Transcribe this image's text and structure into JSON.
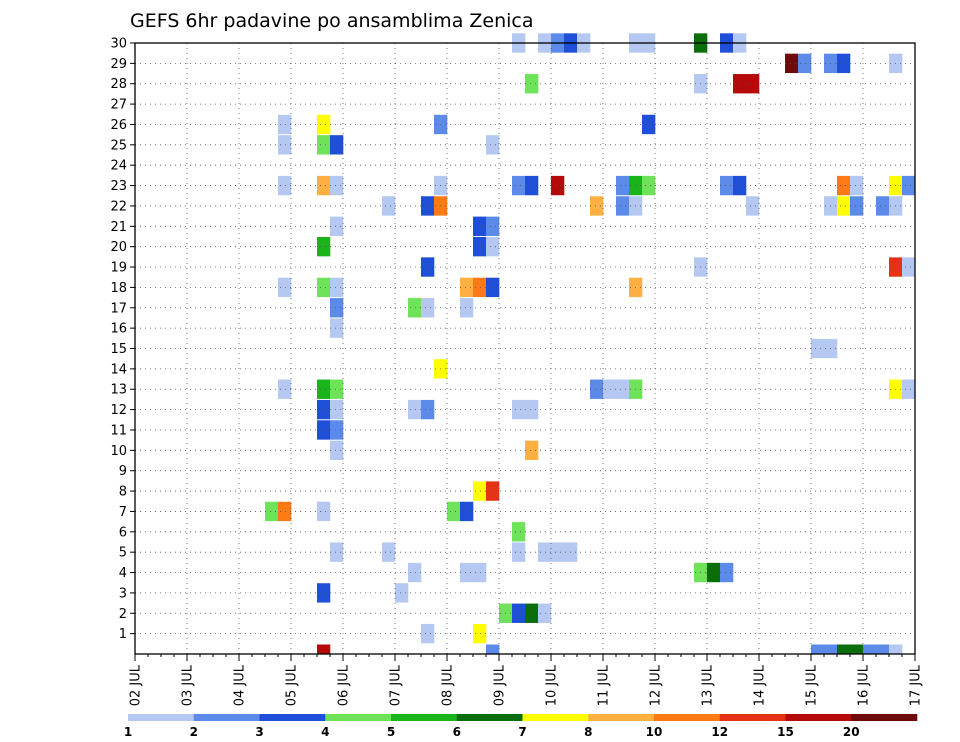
{
  "chart_data": {
    "type": "heatmap",
    "title": "GEFS 6hr padavine po ansamblima Zenica",
    "xlabel": "",
    "ylabel": "",
    "x_ticks": [
      "02 JUL",
      "03 JUL",
      "04 JUL",
      "05 JUL",
      "06 JUL",
      "07 JUL",
      "08 JUL",
      "09 JUL",
      "10 JUL",
      "11 JUL",
      "12 JUL",
      "13 JUL",
      "14 JUL",
      "15 JUL",
      "16 JUL",
      "17 JUL"
    ],
    "y_ticks": [
      "1",
      "2",
      "3",
      "4",
      "5",
      "6",
      "7",
      "8",
      "9",
      "10",
      "11",
      "12",
      "13",
      "14",
      "15",
      "16",
      "17",
      "18",
      "19",
      "20",
      "21",
      "22",
      "23",
      "24",
      "25",
      "26",
      "27",
      "28",
      "29",
      "30"
    ],
    "xlim": [
      0,
      60
    ],
    "ylim": [
      0,
      30
    ],
    "grid": true,
    "colorbar": {
      "labels": [
        "1",
        "2",
        "3",
        "4",
        "5",
        "6",
        "7",
        "8",
        "10",
        "12",
        "15",
        "20"
      ],
      "colors": [
        "#b4c8f2",
        "#5b8ae9",
        "#1f4fd6",
        "#6ee35a",
        "#1ab31a",
        "#0a6e0a",
        "#ffff00",
        "#ffb040",
        "#ff7a14",
        "#e63214",
        "#b40a0a",
        "#6e0a0a"
      ]
    },
    "cells": [
      {
        "member": 30,
        "step": 29.5,
        "level": 1
      },
      {
        "member": 30,
        "step": 31.5,
        "level": 1
      },
      {
        "member": 30,
        "step": 32.5,
        "level": 2
      },
      {
        "member": 30,
        "step": 33.5,
        "level": 3
      },
      {
        "member": 30,
        "step": 34.5,
        "level": 1
      },
      {
        "member": 30,
        "step": 38.5,
        "level": 1
      },
      {
        "member": 30,
        "step": 39.5,
        "level": 1
      },
      {
        "member": 30,
        "step": 43.5,
        "level": 6
      },
      {
        "member": 30,
        "step": 45.5,
        "level": 3
      },
      {
        "member": 30,
        "step": 46.5,
        "level": 1
      },
      {
        "member": 29,
        "step": 50.5,
        "level": 12
      },
      {
        "member": 29,
        "step": 51.5,
        "level": 2
      },
      {
        "member": 29,
        "step": 53.5,
        "level": 2
      },
      {
        "member": 29,
        "step": 54.5,
        "level": 3
      },
      {
        "member": 29,
        "step": 58.5,
        "level": 1
      },
      {
        "member": 28,
        "step": 30.5,
        "level": 4
      },
      {
        "member": 28,
        "step": 43.5,
        "level": 1
      },
      {
        "member": 28,
        "step": 46.5,
        "level": 11
      },
      {
        "member": 28,
        "step": 47.5,
        "level": 11
      },
      {
        "member": 26,
        "step": 11.5,
        "level": 1
      },
      {
        "member": 26,
        "step": 14.5,
        "level": 7
      },
      {
        "member": 26,
        "step": 23.5,
        "level": 2
      },
      {
        "member": 26,
        "step": 39.5,
        "level": 3
      },
      {
        "member": 25,
        "step": 11.5,
        "level": 1
      },
      {
        "member": 25,
        "step": 14.5,
        "level": 4
      },
      {
        "member": 25,
        "step": 15.5,
        "level": 3
      },
      {
        "member": 25,
        "step": 27.5,
        "level": 1
      },
      {
        "member": 23,
        "step": 11.5,
        "level": 1
      },
      {
        "member": 23,
        "step": 14.5,
        "level": 8
      },
      {
        "member": 23,
        "step": 15.5,
        "level": 1
      },
      {
        "member": 23,
        "step": 23.5,
        "level": 1
      },
      {
        "member": 23,
        "step": 29.5,
        "level": 2
      },
      {
        "member": 23,
        "step": 30.5,
        "level": 3
      },
      {
        "member": 23,
        "step": 32.5,
        "level": 11
      },
      {
        "member": 23,
        "step": 37.5,
        "level": 2
      },
      {
        "member": 23,
        "step": 38.5,
        "level": 5
      },
      {
        "member": 23,
        "step": 39.5,
        "level": 4
      },
      {
        "member": 23,
        "step": 45.5,
        "level": 2
      },
      {
        "member": 23,
        "step": 46.5,
        "level": 3
      },
      {
        "member": 23,
        "step": 54.5,
        "level": 9
      },
      {
        "member": 23,
        "step": 55.5,
        "level": 1
      },
      {
        "member": 23,
        "step": 58.5,
        "level": 7
      },
      {
        "member": 23,
        "step": 59.5,
        "level": 2
      },
      {
        "member": 22,
        "step": 19.5,
        "level": 1
      },
      {
        "member": 22,
        "step": 22.5,
        "level": 3
      },
      {
        "member": 22,
        "step": 23.5,
        "level": 9
      },
      {
        "member": 22,
        "step": 35.5,
        "level": 8
      },
      {
        "member": 22,
        "step": 37.5,
        "level": 2
      },
      {
        "member": 22,
        "step": 38.5,
        "level": 1
      },
      {
        "member": 22,
        "step": 47.5,
        "level": 1
      },
      {
        "member": 22,
        "step": 53.5,
        "level": 1
      },
      {
        "member": 22,
        "step": 54.5,
        "level": 7
      },
      {
        "member": 22,
        "step": 55.5,
        "level": 2
      },
      {
        "member": 22,
        "step": 57.5,
        "level": 2
      },
      {
        "member": 22,
        "step": 58.5,
        "level": 1
      },
      {
        "member": 21,
        "step": 15.5,
        "level": 1
      },
      {
        "member": 21,
        "step": 26.5,
        "level": 3
      },
      {
        "member": 21,
        "step": 27.5,
        "level": 2
      },
      {
        "member": 20,
        "step": 14.5,
        "level": 5
      },
      {
        "member": 20,
        "step": 26.5,
        "level": 3
      },
      {
        "member": 20,
        "step": 27.5,
        "level": 1
      },
      {
        "member": 19,
        "step": 22.5,
        "level": 3
      },
      {
        "member": 19,
        "step": 43.5,
        "level": 1
      },
      {
        "member": 19,
        "step": 58.5,
        "level": 10
      },
      {
        "member": 19,
        "step": 59.5,
        "level": 1
      },
      {
        "member": 18,
        "step": 11.5,
        "level": 1
      },
      {
        "member": 18,
        "step": 14.5,
        "level": 4
      },
      {
        "member": 18,
        "step": 15.5,
        "level": 1
      },
      {
        "member": 18,
        "step": 25.5,
        "level": 8
      },
      {
        "member": 18,
        "step": 26.5,
        "level": 9
      },
      {
        "member": 18,
        "step": 27.5,
        "level": 3
      },
      {
        "member": 18,
        "step": 38.5,
        "level": 8
      },
      {
        "member": 17,
        "step": 15.5,
        "level": 2
      },
      {
        "member": 17,
        "step": 21.5,
        "level": 4
      },
      {
        "member": 17,
        "step": 22.5,
        "level": 1
      },
      {
        "member": 17,
        "step": 25.5,
        "level": 1
      },
      {
        "member": 16,
        "step": 15.5,
        "level": 1
      },
      {
        "member": 15,
        "step": 52.5,
        "level": 1
      },
      {
        "member": 15,
        "step": 53.5,
        "level": 1
      },
      {
        "member": 14,
        "step": 23.5,
        "level": 7
      },
      {
        "member": 13,
        "step": 11.5,
        "level": 1
      },
      {
        "member": 13,
        "step": 14.5,
        "level": 5
      },
      {
        "member": 13,
        "step": 15.5,
        "level": 4
      },
      {
        "member": 13,
        "step": 35.5,
        "level": 2
      },
      {
        "member": 13,
        "step": 36.5,
        "level": 1
      },
      {
        "member": 13,
        "step": 37.5,
        "level": 1
      },
      {
        "member": 13,
        "step": 38.5,
        "level": 4
      },
      {
        "member": 13,
        "step": 58.5,
        "level": 7
      },
      {
        "member": 13,
        "step": 59.5,
        "level": 1
      },
      {
        "member": 12,
        "step": 14.5,
        "level": 3
      },
      {
        "member": 12,
        "step": 15.5,
        "level": 1
      },
      {
        "member": 12,
        "step": 21.5,
        "level": 1
      },
      {
        "member": 12,
        "step": 22.5,
        "level": 2
      },
      {
        "member": 12,
        "step": 29.5,
        "level": 1
      },
      {
        "member": 12,
        "step": 30.5,
        "level": 1
      },
      {
        "member": 11,
        "step": 14.5,
        "level": 3
      },
      {
        "member": 11,
        "step": 15.5,
        "level": 2
      },
      {
        "member": 10,
        "step": 15.5,
        "level": 1
      },
      {
        "member": 10,
        "step": 30.5,
        "level": 8
      },
      {
        "member": 8,
        "step": 26.5,
        "level": 7
      },
      {
        "member": 8,
        "step": 27.5,
        "level": 10
      },
      {
        "member": 7,
        "step": 10.5,
        "level": 4
      },
      {
        "member": 7,
        "step": 11.5,
        "level": 9
      },
      {
        "member": 7,
        "step": 14.5,
        "level": 1
      },
      {
        "member": 7,
        "step": 24.5,
        "level": 4
      },
      {
        "member": 7,
        "step": 25.5,
        "level": 3
      },
      {
        "member": 6,
        "step": 29.5,
        "level": 4
      },
      {
        "member": 5,
        "step": 15.5,
        "level": 1
      },
      {
        "member": 5,
        "step": 19.5,
        "level": 1
      },
      {
        "member": 5,
        "step": 29.5,
        "level": 1
      },
      {
        "member": 5,
        "step": 31.5,
        "level": 1
      },
      {
        "member": 5,
        "step": 32.5,
        "level": 1
      },
      {
        "member": 5,
        "step": 33.5,
        "level": 1
      },
      {
        "member": 4,
        "step": 21.5,
        "level": 1
      },
      {
        "member": 4,
        "step": 25.5,
        "level": 1
      },
      {
        "member": 4,
        "step": 26.5,
        "level": 1
      },
      {
        "member": 4,
        "step": 43.5,
        "level": 4
      },
      {
        "member": 4,
        "step": 44.5,
        "level": 6
      },
      {
        "member": 4,
        "step": 45.5,
        "level": 2
      },
      {
        "member": 3,
        "step": 14.5,
        "level": 3
      },
      {
        "member": 3,
        "step": 20.5,
        "level": 1
      },
      {
        "member": 2,
        "step": 28.5,
        "level": 4
      },
      {
        "member": 2,
        "step": 29.5,
        "level": 3
      },
      {
        "member": 2,
        "step": 30.5,
        "level": 6
      },
      {
        "member": 2,
        "step": 31.5,
        "level": 1
      },
      {
        "member": 1,
        "step": 22.5,
        "level": 1
      },
      {
        "member": 1,
        "step": 26.5,
        "level": 7
      },
      {
        "member": 0,
        "step": 14.5,
        "level": 11
      },
      {
        "member": 0,
        "step": 27.5,
        "level": 2
      },
      {
        "member": 0,
        "step": 52.5,
        "level": 2
      },
      {
        "member": 0,
        "step": 53.5,
        "level": 2
      },
      {
        "member": 0,
        "step": 54.5,
        "level": 6
      },
      {
        "member": 0,
        "step": 55.5,
        "level": 6
      },
      {
        "member": 0,
        "step": 56.5,
        "level": 2
      },
      {
        "member": 0,
        "step": 57.5,
        "level": 2
      },
      {
        "member": 0,
        "step": 58.5,
        "level": 1
      }
    ]
  }
}
